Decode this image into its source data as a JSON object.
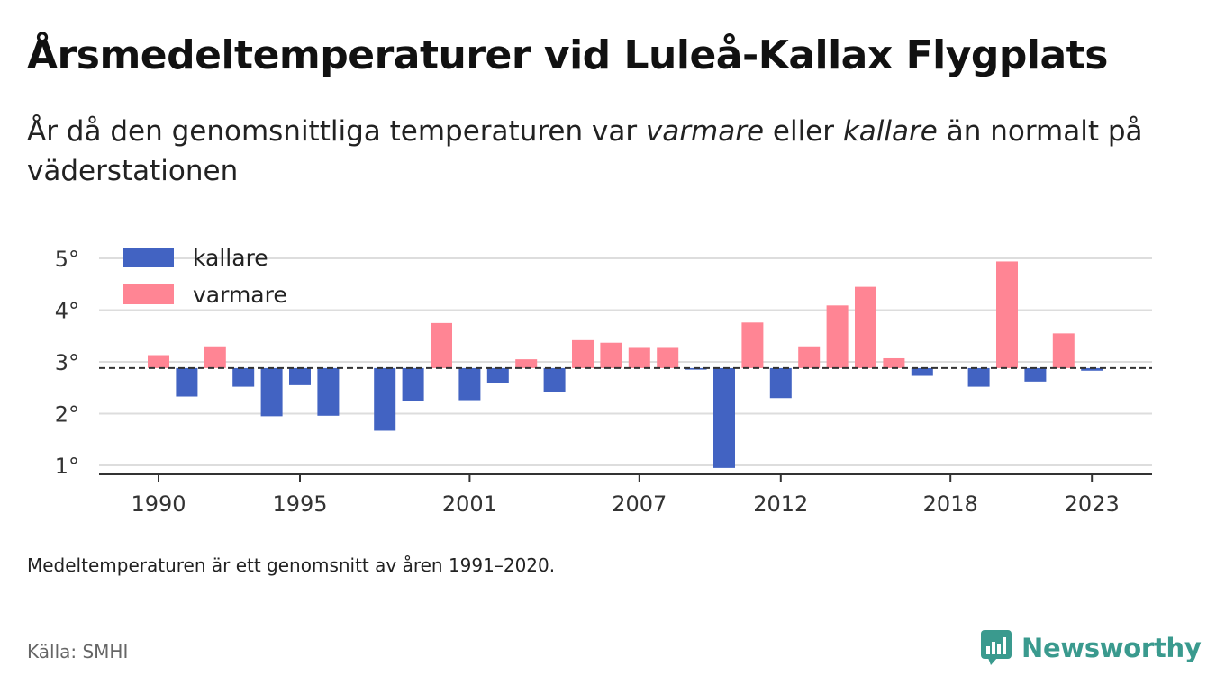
{
  "title": "Årsmedeltemperaturer vid Luleå-Kallax Flygplats",
  "subtitle": {
    "part1": "År då den genomsnittliga temperaturen var ",
    "warm_word": "varmare",
    "part2": " eller ",
    "cold_word": "kallare",
    "part3": " än normalt på väderstationen"
  },
  "note": "Medeltemperaturen är ett genomsnitt av åren 1991–2020.",
  "source": "Källa: SMHI",
  "brand": {
    "name": "Newsworthy",
    "icon": "newsworthy-logo-icon"
  },
  "colors": {
    "colder": "#4263c2",
    "warmer": "#ff8594",
    "baseline": "#333333",
    "grid": "#dddddd",
    "brand": "#3a9a8e"
  },
  "chart_data": {
    "type": "bar",
    "baseline": 2.88,
    "ylim": [
      0.8,
      5.2
    ],
    "y_ticks": [
      1,
      2,
      3,
      4,
      5
    ],
    "y_tick_labels": [
      "1°",
      "2°",
      "3°",
      "4°",
      "5°"
    ],
    "x_ticks": [
      1990,
      1995,
      2001,
      2007,
      2012,
      2018,
      2023
    ],
    "x_tick_labels": [
      "1990",
      "1995",
      "2001",
      "2007",
      "2012",
      "2018",
      "2023"
    ],
    "grid": true,
    "legend": {
      "placement": "top-left",
      "items": [
        "kallare",
        "varmare"
      ]
    },
    "years": [
      1990,
      1991,
      1992,
      1993,
      1994,
      1995,
      1996,
      1997,
      1998,
      1999,
      2000,
      2001,
      2002,
      2003,
      2004,
      2005,
      2006,
      2007,
      2008,
      2009,
      2010,
      2011,
      2012,
      2013,
      2014,
      2015,
      2016,
      2017,
      2018,
      2019,
      2020,
      2021,
      2022,
      2023
    ],
    "series": [
      {
        "name": "kallare",
        "color": "#4263c2",
        "values": [
          null,
          2.33,
          null,
          2.52,
          1.95,
          2.55,
          1.96,
          null,
          1.67,
          2.25,
          null,
          2.26,
          2.59,
          null,
          2.42,
          null,
          null,
          null,
          null,
          2.85,
          0.95,
          null,
          2.3,
          null,
          null,
          null,
          null,
          2.73,
          null,
          2.52,
          null,
          2.62,
          null,
          2.83
        ]
      },
      {
        "name": "varmare",
        "color": "#ff8594",
        "values": [
          3.13,
          null,
          3.3,
          null,
          null,
          null,
          null,
          null,
          null,
          null,
          3.75,
          null,
          null,
          3.05,
          null,
          3.42,
          3.37,
          3.27,
          3.27,
          null,
          null,
          3.76,
          null,
          3.3,
          4.09,
          4.45,
          3.07,
          null,
          null,
          null,
          4.94,
          null,
          3.55,
          null
        ]
      }
    ]
  }
}
